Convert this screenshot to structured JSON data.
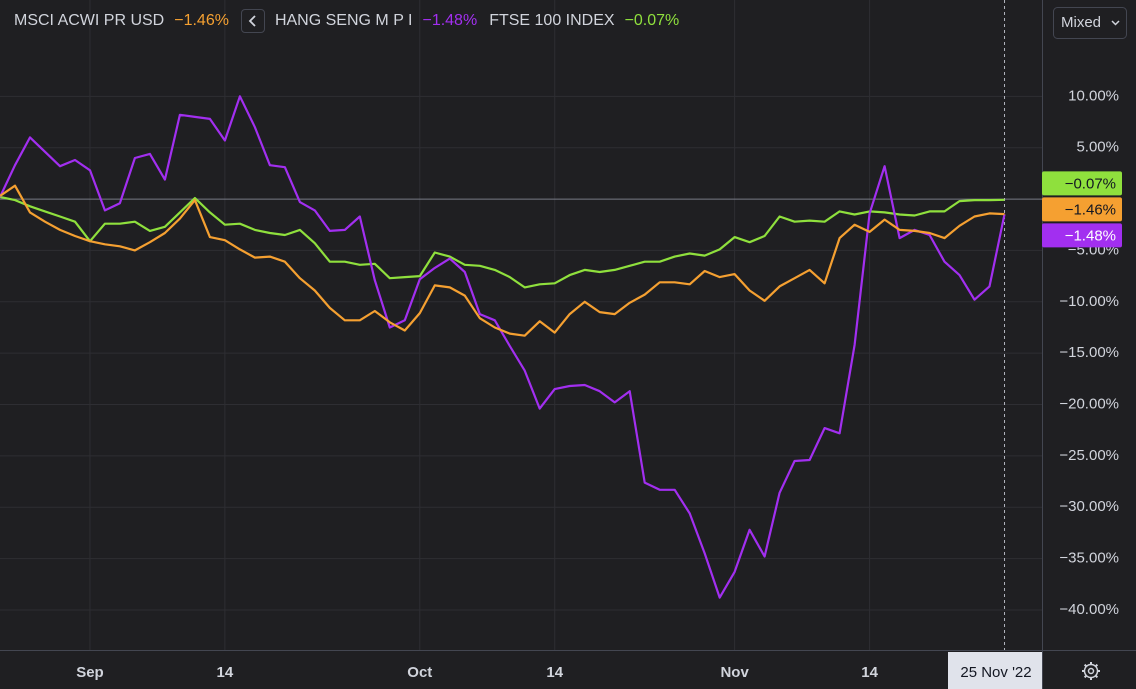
{
  "chart_data": {
    "type": "line",
    "xlim": [
      0,
      69.5
    ],
    "ylim": [
      -43.9,
      19.38
    ],
    "xticks": [
      {
        "value": 6,
        "label": "Sep"
      },
      {
        "value": 15,
        "label": "14"
      },
      {
        "value": 28,
        "label": "Oct"
      },
      {
        "value": 37,
        "label": "14"
      },
      {
        "value": 49,
        "label": "Nov"
      },
      {
        "value": 58,
        "label": "14"
      }
    ],
    "yticks": [
      {
        "value": 10,
        "label": "10.00%"
      },
      {
        "value": 5,
        "label": "5.00%"
      },
      {
        "value": -5,
        "label": "−5.00%"
      },
      {
        "value": -10,
        "label": "−10.00%"
      },
      {
        "value": -15,
        "label": "−15.00%"
      },
      {
        "value": -20,
        "label": "−20.00%"
      },
      {
        "value": -25,
        "label": "−25.00%"
      },
      {
        "value": -30,
        "label": "−30.00%"
      },
      {
        "value": -35,
        "label": "−35.00%"
      },
      {
        "value": -40,
        "label": "−40.00%"
      }
    ],
    "grid": true,
    "zero_line": true,
    "crosshair": {
      "x": 67,
      "label": "25 Nov '22"
    },
    "series": [
      {
        "name": "MSCI ACWI PR USD",
        "color": "#f5a031",
        "values": [
          0.3,
          1.3,
          -1.3,
          -2.2,
          -3.0,
          -3.6,
          -4.1,
          -4.4,
          -4.6,
          -5.0,
          -4.2,
          -3.3,
          -1.9,
          -0.1,
          -3.7,
          -4.0,
          -4.9,
          -5.7,
          -5.6,
          -6.1,
          -7.7,
          -8.9,
          -10.6,
          -11.8,
          -11.8,
          -10.9,
          -12.0,
          -12.8,
          -11.1,
          -8.4,
          -8.6,
          -9.4,
          -11.6,
          -12.5,
          -13.1,
          -13.3,
          -11.9,
          -13.0,
          -11.2,
          -10.0,
          -11.0,
          -11.2,
          -10.1,
          -9.3,
          -8.1,
          -8.1,
          -8.3,
          -7.0,
          -7.6,
          -7.3,
          -8.9,
          -9.9,
          -8.5,
          -7.7,
          -6.9,
          -8.2,
          -3.8,
          -2.5,
          -3.2,
          -2.0,
          -3.0,
          -3.1,
          -3.3,
          -3.8,
          -2.6,
          -1.7,
          -1.4,
          -1.46
        ],
        "value_labels": [
          null,
          null,
          null,
          null,
          null,
          null,
          null,
          null,
          null,
          null,
          null,
          null,
          null,
          null,
          null,
          null,
          null,
          null,
          null,
          null,
          null,
          null,
          null,
          null,
          null,
          null,
          null,
          null,
          null,
          null,
          null,
          null,
          null,
          null,
          null,
          null,
          null,
          null,
          null,
          null,
          null,
          null,
          null,
          null,
          null,
          null,
          null,
          null,
          null,
          null,
          null,
          null,
          null,
          null,
          null,
          null,
          null,
          null,
          null,
          null,
          null,
          null,
          null,
          null,
          null,
          null,
          null,
          "−1.46%"
        ]
      },
      {
        "name": "HANG SENG M P I",
        "color": "#a22ff0",
        "values": [
          0.2,
          3.3,
          6.0,
          4.6,
          3.2,
          3.8,
          2.8,
          -1.1,
          -0.4,
          4.0,
          4.4,
          1.9,
          8.2,
          8.0,
          7.8,
          5.7,
          10.0,
          7.0,
          3.3,
          3.1,
          -0.3,
          -1.1,
          -3.1,
          -3.0,
          -1.7,
          -7.9,
          -12.5,
          -11.8,
          -7.8,
          -6.7,
          -5.8,
          -7.1,
          -11.2,
          -11.8,
          -14.3,
          -16.7,
          -20.4,
          -18.5,
          -18.2,
          -18.1,
          -18.7,
          -19.8,
          -18.7,
          -27.6,
          -28.3,
          -28.3,
          -30.6,
          -34.5,
          -38.8,
          -36.3,
          -32.2,
          -34.8,
          -28.6,
          -25.5,
          -25.4,
          -22.3,
          -22.8,
          -14.2,
          -1.4,
          3.2,
          -3.8,
          -3.0,
          -3.5,
          -6.1,
          -7.4,
          -9.8,
          -8.5,
          -1.48
        ],
        "value_labels": [
          null,
          null,
          null,
          null,
          null,
          null,
          null,
          null,
          null,
          null,
          null,
          null,
          null,
          null,
          null,
          null,
          null,
          null,
          null,
          null,
          null,
          null,
          null,
          null,
          null,
          null,
          null,
          null,
          null,
          null,
          null,
          null,
          null,
          null,
          null,
          null,
          null,
          null,
          null,
          null,
          null,
          null,
          null,
          null,
          null,
          null,
          null,
          null,
          null,
          null,
          null,
          null,
          null,
          null,
          null,
          null,
          null,
          null,
          null,
          null,
          null,
          null,
          null,
          null,
          null,
          null,
          null,
          "−1.48%"
        ]
      },
      {
        "name": "FTSE 100 INDEX",
        "color": "#8fe03d",
        "values": [
          0.2,
          -0.1,
          -0.7,
          -1.2,
          -1.7,
          -2.2,
          -4.1,
          -2.4,
          -2.4,
          -2.2,
          -3.1,
          -2.7,
          -1.3,
          0.1,
          -1.3,
          -2.5,
          -2.4,
          -3.0,
          -3.3,
          -3.5,
          -3.0,
          -4.3,
          -6.1,
          -6.1,
          -6.4,
          -6.3,
          -7.7,
          -7.6,
          -7.5,
          -5.2,
          -5.6,
          -6.4,
          -6.5,
          -6.9,
          -7.6,
          -8.6,
          -8.3,
          -8.2,
          -7.4,
          -6.9,
          -7.1,
          -6.9,
          -6.5,
          -6.1,
          -6.1,
          -5.6,
          -5.3,
          -5.5,
          -4.9,
          -3.7,
          -4.2,
          -3.6,
          -1.7,
          -2.2,
          -2.1,
          -2.2,
          -1.2,
          -1.5,
          -1.2,
          -1.3,
          -1.5,
          -1.6,
          -1.2,
          -1.2,
          -0.2,
          -0.1,
          -0.1,
          -0.07
        ],
        "value_labels": [
          null,
          null,
          null,
          null,
          null,
          null,
          null,
          null,
          null,
          null,
          null,
          null,
          null,
          null,
          null,
          null,
          null,
          null,
          null,
          null,
          null,
          null,
          null,
          null,
          null,
          null,
          null,
          null,
          null,
          null,
          null,
          null,
          null,
          null,
          null,
          null,
          null,
          null,
          null,
          null,
          null,
          null,
          null,
          null,
          null,
          null,
          null,
          null,
          null,
          null,
          null,
          null,
          null,
          null,
          null,
          null,
          null,
          null,
          null,
          null,
          null,
          null,
          null,
          null,
          null,
          null,
          null,
          "−0.07%"
        ]
      }
    ]
  },
  "toolbar": {
    "scale_mode": "Mixed"
  }
}
